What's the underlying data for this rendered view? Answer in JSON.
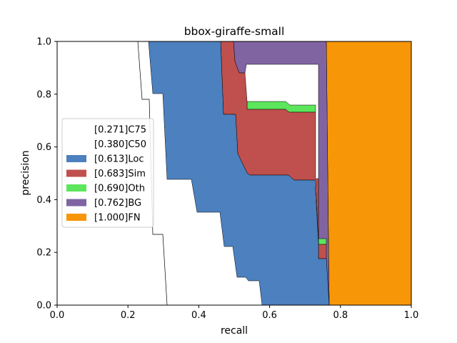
{
  "chart_data": {
    "type": "area",
    "title": "bbox-giraffe-small",
    "xlabel": "recall",
    "ylabel": "precision",
    "xlim": [
      0,
      1
    ],
    "ylim": [
      0,
      1
    ],
    "xticks": [
      "0.0",
      "0.2",
      "0.4",
      "0.6",
      "0.8",
      "1.0"
    ],
    "yticks": [
      "0.0",
      "0.2",
      "0.4",
      "0.6",
      "0.8",
      "1.0"
    ],
    "grid": false,
    "legend_position": "center-left",
    "series": [
      {
        "name": "[0.271]C75",
        "color": "#ffffff",
        "points": [
          [
            0.229,
            1.0
          ],
          [
            0.239,
            0.78
          ],
          [
            0.255,
            0.78
          ],
          [
            0.265,
            0.265
          ],
          [
            0.3,
            0.265
          ],
          [
            0.31,
            0.0
          ]
        ]
      },
      {
        "name": "[0.380]C50",
        "color": "#ffffff",
        "points": [
          [
            0.23,
            1.0
          ],
          [
            0.262,
            0.8
          ]
        ]
      },
      {
        "name": "[0.613]Loc",
        "color": "#4c80be",
        "points": [
          [
            0.258,
            1.0
          ],
          [
            0.27,
            0.8
          ],
          [
            0.3,
            0.8
          ],
          [
            0.31,
            0.475
          ],
          [
            0.38,
            0.475
          ],
          [
            0.39,
            0.35
          ],
          [
            0.46,
            0.35
          ],
          [
            0.47,
            0.22
          ],
          [
            0.5,
            0.22
          ],
          [
            0.51,
            0.1
          ],
          [
            0.53,
            0.1
          ],
          [
            0.55,
            0.09
          ],
          [
            0.57,
            0.09
          ],
          [
            0.58,
            0.0
          ]
        ]
      },
      {
        "name": "[0.683]Sim",
        "color": "#c0504d",
        "points": [
          [
            0.462,
            1.0
          ],
          [
            0.47,
            0.73
          ],
          [
            0.5,
            0.73
          ],
          [
            0.51,
            0.5
          ],
          [
            0.65,
            0.5
          ],
          [
            0.665,
            0.475
          ],
          [
            0.73,
            0.475
          ],
          [
            0.74,
            0.22
          ],
          [
            0.76,
            0.22
          ]
        ]
      },
      {
        "name": "[0.690]Oth",
        "color": "#5ce65c",
        "points": [
          [
            0.53,
            0.775
          ],
          [
            0.655,
            0.775
          ],
          [
            0.665,
            0.762
          ],
          [
            0.73,
            0.762
          ],
          [
            0.74,
            0.25
          ],
          [
            0.76,
            0.25
          ]
        ]
      },
      {
        "name": "[0.762]BG",
        "color": "#8064a2",
        "points": [
          [
            0.5,
            1.0
          ],
          [
            0.51,
            0.875
          ],
          [
            0.53,
            0.875
          ],
          [
            0.545,
            0.75
          ],
          [
            0.75,
            0.75
          ],
          [
            0.765,
            0.0
          ]
        ]
      },
      {
        "name": "[1.000]FN",
        "color": "#f79606",
        "points": [
          [
            0.76,
            1.0
          ],
          [
            0.77,
            0.0
          ],
          [
            1.0,
            0.0
          ],
          [
            1.0,
            1.0
          ]
        ]
      }
    ]
  }
}
